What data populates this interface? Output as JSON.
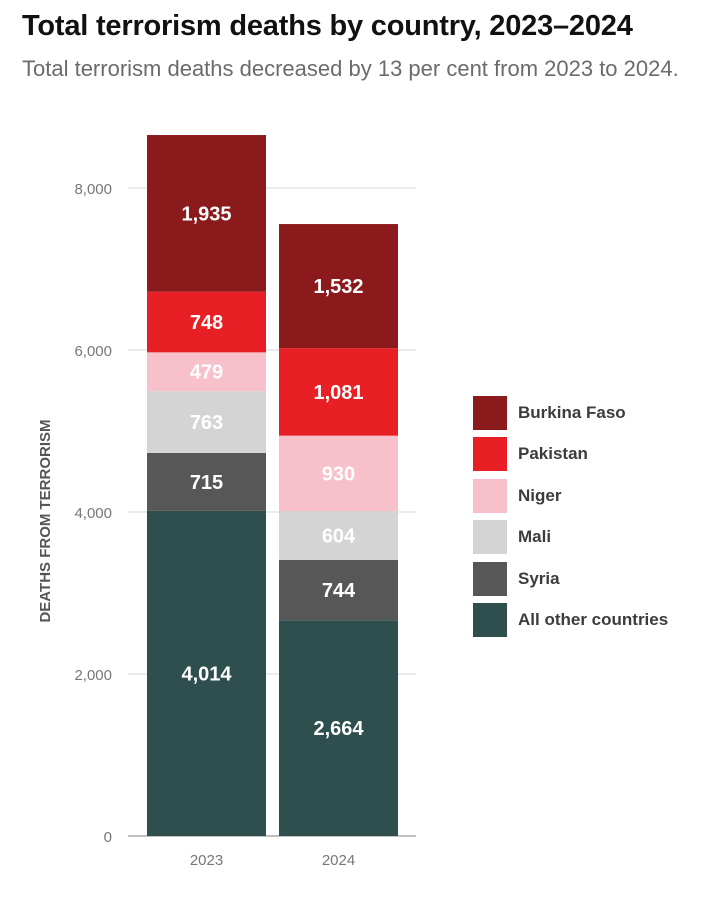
{
  "title": "Total terrorism deaths by country, 2023–2024",
  "subtitle": "Total terrorism deaths decreased by 13 per cent from 2023 to 2024.",
  "chart_data": {
    "type": "bar",
    "stacked": true,
    "title": "Total terrorism deaths by country, 2023–2024",
    "subtitle": "Total terrorism deaths decreased by 13 per cent from 2023 to 2024.",
    "xlabel": "",
    "ylabel": "DEATHS FROM TERRORISM",
    "ylim": [
      0,
      8000
    ],
    "yticks": [
      0,
      2000,
      4000,
      6000,
      8000
    ],
    "ytick_labels": [
      "0",
      "2,000",
      "4,000",
      "6,000",
      "8,000"
    ],
    "categories": [
      "2023",
      "2024"
    ],
    "grid": true,
    "legend_position": "right",
    "series": [
      {
        "name": "All other countries",
        "color": "#2f4f4f",
        "values": [
          4014,
          2664
        ],
        "labels": [
          "4,014",
          "2,664"
        ]
      },
      {
        "name": "Syria",
        "color": "#575757",
        "values": [
          715,
          744
        ],
        "labels": [
          "715",
          "744"
        ]
      },
      {
        "name": "Mali",
        "color": "#d4d4d4",
        "values": [
          763,
          604
        ],
        "labels": [
          "763",
          "604"
        ]
      },
      {
        "name": "Niger",
        "color": "#f7c0cb",
        "values": [
          479,
          930
        ],
        "labels": [
          "479",
          "930"
        ]
      },
      {
        "name": "Pakistan",
        "color": "#e81f25",
        "values": [
          748,
          1081
        ],
        "labels": [
          "748",
          "1,081"
        ]
      },
      {
        "name": "Burkina Faso",
        "color": "#8b1a1d",
        "values": [
          1935,
          1532
        ],
        "labels": [
          "1,935",
          "1,532"
        ]
      }
    ]
  }
}
